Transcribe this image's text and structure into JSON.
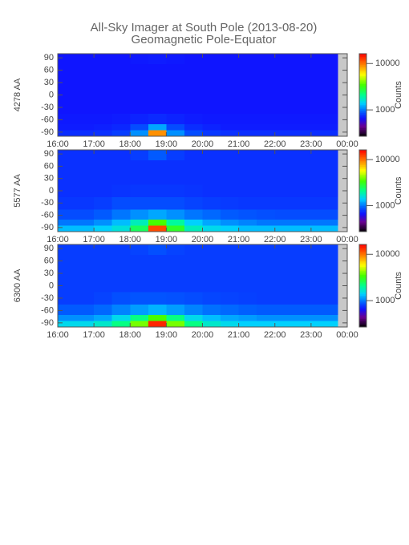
{
  "chart_data": [
    {
      "type": "heatmap",
      "title": "All-Sky Imager at South Pole (2013-08-20)",
      "subtitle": "Geomagnetic Pole-Equator",
      "ylabel": "4278 AA",
      "zlabel": "Counts",
      "log_z": true,
      "nodata_color": "#c8c8c8",
      "xlim": [
        16,
        24
      ],
      "ylim": [
        -100,
        100
      ],
      "zlim": [
        270,
        16300
      ],
      "xticks": [
        {
          "value": 16,
          "label": "16:00"
        },
        {
          "value": 17,
          "label": "17:00"
        },
        {
          "value": 18,
          "label": "18:00"
        },
        {
          "value": 19,
          "label": "19:00"
        },
        {
          "value": 20,
          "label": "20:00"
        },
        {
          "value": 21,
          "label": "21:00"
        },
        {
          "value": 22,
          "label": "22:00"
        },
        {
          "value": 23,
          "label": "23:00"
        },
        {
          "value": 24,
          "label": "00:00"
        }
      ],
      "yticks": [
        -90,
        -60,
        -30,
        0,
        30,
        60,
        90
      ],
      "zticks": [
        1000,
        10000
      ],
      "xbins": [
        16,
        16.5,
        17,
        17.5,
        18,
        18.5,
        19,
        19.5,
        20,
        20.5,
        21,
        21.5,
        22,
        22.5,
        23,
        23.5,
        23.75,
        24
      ],
      "ybins": [
        -100,
        -85,
        -70,
        -45,
        -15,
        15,
        45,
        75,
        100
      ],
      "z": [
        [
          750,
          750,
          760,
          800,
          1100,
          9000,
          1100,
          850,
          780,
          760,
          750,
          750,
          750,
          750,
          750,
          750,
          null
        ],
        [
          700,
          700,
          710,
          730,
          850,
          1200,
          850,
          750,
          720,
          700,
          700,
          700,
          700,
          700,
          700,
          700,
          null
        ],
        [
          690,
          690,
          690,
          700,
          720,
          740,
          720,
          700,
          690,
          690,
          690,
          690,
          690,
          690,
          690,
          690,
          null
        ],
        [
          680,
          680,
          680,
          680,
          680,
          680,
          680,
          680,
          680,
          680,
          680,
          680,
          680,
          680,
          680,
          680,
          null
        ],
        [
          680,
          680,
          680,
          680,
          680,
          680,
          680,
          680,
          680,
          680,
          680,
          680,
          680,
          680,
          680,
          680,
          null
        ],
        [
          680,
          680,
          680,
          680,
          680,
          680,
          680,
          680,
          680,
          680,
          680,
          680,
          680,
          680,
          680,
          680,
          null
        ],
        [
          680,
          680,
          680,
          680,
          680,
          680,
          680,
          680,
          680,
          680,
          680,
          680,
          680,
          680,
          680,
          680,
          null
        ],
        [
          680,
          680,
          680,
          680,
          690,
          700,
          690,
          680,
          680,
          680,
          680,
          680,
          680,
          680,
          680,
          680,
          null
        ]
      ]
    },
    {
      "type": "heatmap",
      "ylabel": "5577 AA",
      "zlabel": "Counts",
      "log_z": true,
      "nodata_color": "#c8c8c8",
      "xlim": [
        16,
        24
      ],
      "ylim": [
        -100,
        100
      ],
      "zlim": [
        270,
        16300
      ],
      "xticks": [
        {
          "value": 16,
          "label": "16:00"
        },
        {
          "value": 17,
          "label": "17:00"
        },
        {
          "value": 18,
          "label": "18:00"
        },
        {
          "value": 19,
          "label": "19:00"
        },
        {
          "value": 20,
          "label": "20:00"
        },
        {
          "value": 21,
          "label": "21:00"
        },
        {
          "value": 22,
          "label": "22:00"
        },
        {
          "value": 23,
          "label": "23:00"
        },
        {
          "value": 24,
          "label": "00:00"
        }
      ],
      "yticks": [
        -90,
        -60,
        -30,
        0,
        30,
        60,
        90
      ],
      "zticks": [
        1000,
        10000
      ],
      "xbins": [
        16,
        16.5,
        17,
        17.5,
        18,
        18.5,
        19,
        19.5,
        20,
        20.5,
        21,
        21.5,
        22,
        22.5,
        23,
        23.5,
        23.75,
        24
      ],
      "ybins": [
        -100,
        -85,
        -70,
        -45,
        -15,
        15,
        45,
        75,
        100
      ],
      "z": [
        [
          1300,
          1300,
          1400,
          1600,
          2500,
          12000,
          3000,
          1800,
          1500,
          1400,
          1300,
          1300,
          1300,
          1300,
          1300,
          1300,
          null
        ],
        [
          1000,
          1000,
          1100,
          1300,
          1800,
          3500,
          2000,
          1400,
          1200,
          1100,
          1050,
          1000,
          1000,
          1000,
          1000,
          1000,
          null
        ],
        [
          850,
          850,
          900,
          1000,
          1100,
          1200,
          1100,
          1000,
          950,
          900,
          880,
          860,
          850,
          850,
          850,
          850,
          null
        ],
        [
          780,
          780,
          800,
          850,
          850,
          850,
          850,
          820,
          800,
          790,
          780,
          780,
          780,
          780,
          780,
          780,
          null
        ],
        [
          760,
          760,
          760,
          770,
          780,
          780,
          780,
          770,
          760,
          760,
          760,
          760,
          760,
          760,
          760,
          760,
          null
        ],
        [
          760,
          760,
          760,
          760,
          760,
          760,
          760,
          760,
          760,
          760,
          760,
          760,
          760,
          760,
          760,
          760,
          null
        ],
        [
          760,
          760,
          760,
          760,
          760,
          760,
          760,
          760,
          760,
          760,
          760,
          760,
          760,
          760,
          760,
          760,
          null
        ],
        [
          760,
          760,
          760,
          760,
          800,
          900,
          800,
          760,
          760,
          760,
          760,
          760,
          760,
          760,
          760,
          760,
          null
        ]
      ]
    },
    {
      "type": "heatmap",
      "ylabel": "6300 AA",
      "zlabel": "Counts",
      "log_z": true,
      "nodata_color": "#c8c8c8",
      "xlim": [
        16,
        24
      ],
      "ylim": [
        -100,
        100
      ],
      "zlim": [
        270,
        16300
      ],
      "xticks": [
        {
          "value": 16,
          "label": "16:00"
        },
        {
          "value": 17,
          "label": "17:00"
        },
        {
          "value": 18,
          "label": "18:00"
        },
        {
          "value": 19,
          "label": "19:00"
        },
        {
          "value": 20,
          "label": "20:00"
        },
        {
          "value": 21,
          "label": "21:00"
        },
        {
          "value": 22,
          "label": "22:00"
        },
        {
          "value": 23,
          "label": "23:00"
        },
        {
          "value": 24,
          "label": "00:00"
        }
      ],
      "yticks": [
        -90,
        -60,
        -30,
        0,
        30,
        60,
        90
      ],
      "zticks": [
        1000,
        10000
      ],
      "xbins": [
        16,
        16.5,
        17,
        17.5,
        18,
        18.5,
        19,
        19.5,
        20,
        20.5,
        21,
        21.5,
        22,
        22.5,
        23,
        23.5,
        23.75,
        24
      ],
      "ybins": [
        -100,
        -85,
        -70,
        -45,
        -15,
        15,
        45,
        75,
        100
      ],
      "z": [
        [
          1500,
          1500,
          1700,
          2200,
          4000,
          14000,
          4000,
          2200,
          1700,
          1500,
          1400,
          1400,
          1400,
          1400,
          1400,
          1400,
          null
        ],
        [
          1100,
          1100,
          1200,
          1500,
          2200,
          3500,
          2200,
          1500,
          1300,
          1200,
          1150,
          1100,
          1100,
          1100,
          1100,
          1100,
          null
        ],
        [
          900,
          900,
          950,
          1050,
          1150,
          1250,
          1150,
          1050,
          980,
          950,
          920,
          900,
          900,
          900,
          900,
          900,
          null
        ],
        [
          800,
          800,
          820,
          860,
          880,
          880,
          870,
          850,
          830,
          820,
          810,
          800,
          800,
          800,
          800,
          800,
          null
        ],
        [
          800,
          800,
          800,
          800,
          800,
          800,
          800,
          800,
          800,
          800,
          800,
          800,
          800,
          800,
          800,
          800,
          null
        ],
        [
          800,
          800,
          800,
          800,
          800,
          800,
          800,
          800,
          800,
          800,
          800,
          800,
          800,
          800,
          800,
          800,
          null
        ],
        [
          800,
          800,
          800,
          800,
          800,
          800,
          800,
          800,
          800,
          800,
          800,
          800,
          800,
          800,
          800,
          800,
          null
        ],
        [
          800,
          800,
          800,
          800,
          820,
          860,
          820,
          800,
          800,
          800,
          800,
          800,
          800,
          800,
          800,
          800,
          null
        ]
      ]
    }
  ]
}
